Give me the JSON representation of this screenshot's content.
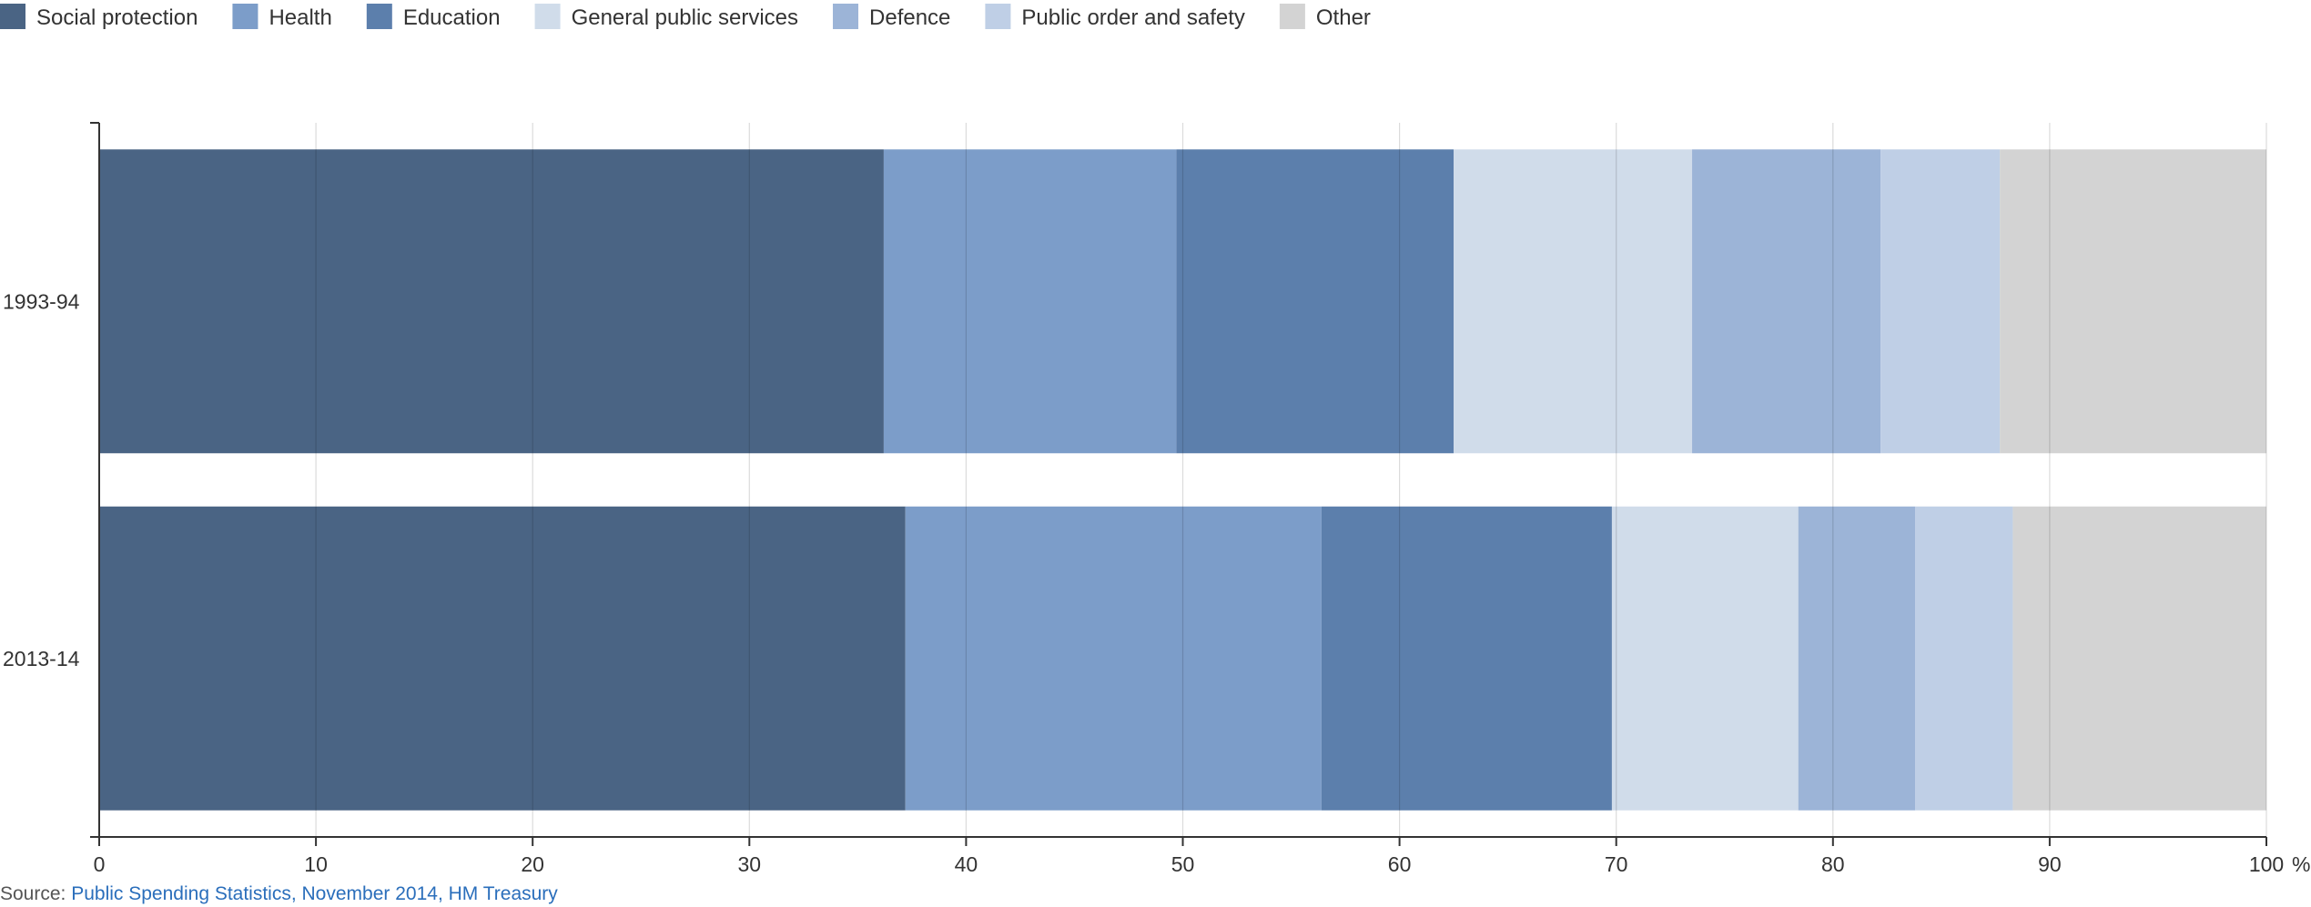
{
  "chart_data": {
    "type": "bar",
    "orientation": "horizontal",
    "stacked": true,
    "categories": [
      "1993-94",
      "2013-14"
    ],
    "series": [
      {
        "name": "Social protection",
        "color": "#4a6484",
        "values": [
          36.2,
          37.2
        ]
      },
      {
        "name": "Health",
        "color": "#7c9dc9",
        "values": [
          13.5,
          19.2
        ]
      },
      {
        "name": "Education",
        "color": "#5c7fac",
        "values": [
          12.8,
          13.4
        ]
      },
      {
        "name": "General public services",
        "color": "#d0dcea",
        "values": [
          11.0,
          8.6
        ]
      },
      {
        "name": "Defence",
        "color": "#9cb4d7",
        "values": [
          8.7,
          5.4
        ]
      },
      {
        "name": "Public order and safety",
        "color": "#bfcfe6",
        "values": [
          5.5,
          4.5
        ]
      },
      {
        "name": "Other",
        "color": "#d3d3d3",
        "values": [
          12.3,
          11.7
        ]
      }
    ],
    "xlim": [
      0,
      100
    ],
    "xticks": [
      0,
      10,
      20,
      30,
      40,
      50,
      60,
      70,
      80,
      90,
      100
    ],
    "x_unit": "%",
    "grid": true,
    "legend_position": "top-left"
  },
  "source": {
    "prefix": "Source: ",
    "link_text": "Public Spending Statistics, November 2014, HM Treasury"
  }
}
